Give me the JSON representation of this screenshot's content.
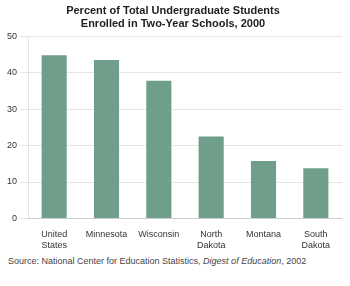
{
  "chart_data": {
    "type": "bar",
    "title": [
      "Percent of Total Undergraduate Students",
      "Enrolled in Two-Year Schools, 2000"
    ],
    "categories": [
      "United\nStates",
      "Minnesota",
      "Wisconsin",
      "North\nDakota",
      "Montana",
      "South\nDakota"
    ],
    "values": [
      44.8,
      43.5,
      37.8,
      22.5,
      15.8,
      13.8
    ],
    "color": "#6f9f8a",
    "ylim": [
      0,
      50
    ],
    "yticks": [
      0,
      10,
      20,
      30,
      40,
      50
    ],
    "grid": true,
    "annotations": [
      "Source: National Center for Education Statistics, ",
      "Digest of Education",
      ", 2002"
    ]
  }
}
